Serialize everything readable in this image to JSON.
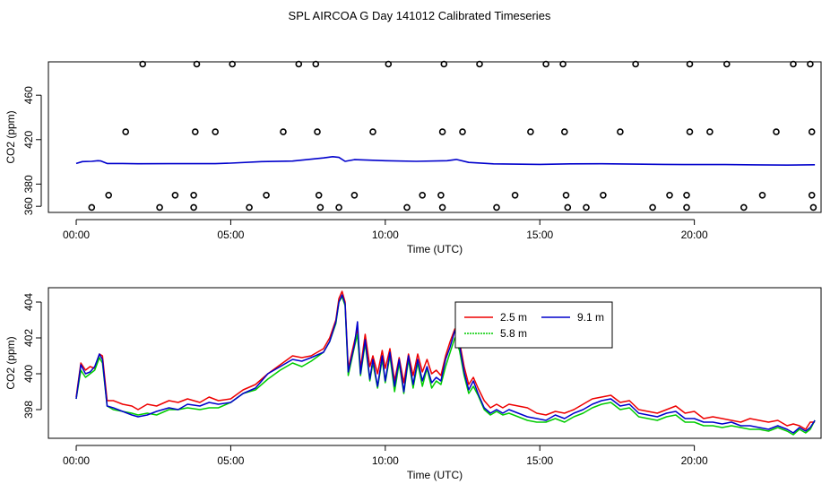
{
  "title": "SPL AIRCOA G  Day 141012  Calibrated Timeseries",
  "colors": {
    "s25": "#ee0000",
    "s58": "#00cc00",
    "s91": "#0000cc",
    "axis": "#000000"
  },
  "chart_data": [
    {
      "type": "scatter",
      "title": "SPL AIRCOA G  Day 141012  Calibrated Timeseries",
      "xlabel": "Time (UTC)",
      "ylabel": "CO2 (ppm)",
      "xlim": [
        -0.9,
        24.1
      ],
      "ylim": [
        354.5,
        490
      ],
      "xticks": [
        0,
        5,
        10,
        15,
        20
      ],
      "xtick_labels": [
        "00:00",
        "05:00",
        "10:00",
        "15:00",
        "20:00"
      ],
      "yticks": [
        360,
        380,
        420,
        460
      ],
      "ytick_labels": [
        "360",
        "380",
        "420",
        "460"
      ],
      "points": [
        {
          "x": 2.15,
          "y": 488
        },
        {
          "x": 3.9,
          "y": 488
        },
        {
          "x": 5.05,
          "y": 488
        },
        {
          "x": 7.2,
          "y": 488
        },
        {
          "x": 7.75,
          "y": 488
        },
        {
          "x": 10.1,
          "y": 488
        },
        {
          "x": 11.9,
          "y": 488
        },
        {
          "x": 13.05,
          "y": 488
        },
        {
          "x": 15.2,
          "y": 488
        },
        {
          "x": 15.75,
          "y": 488
        },
        {
          "x": 18.1,
          "y": 488
        },
        {
          "x": 19.85,
          "y": 488
        },
        {
          "x": 21.05,
          "y": 488
        },
        {
          "x": 23.2,
          "y": 488
        },
        {
          "x": 23.75,
          "y": 488
        },
        {
          "x": 1.6,
          "y": 427
        },
        {
          "x": 3.85,
          "y": 427
        },
        {
          "x": 4.5,
          "y": 427
        },
        {
          "x": 6.7,
          "y": 427
        },
        {
          "x": 7.8,
          "y": 427
        },
        {
          "x": 9.6,
          "y": 427
        },
        {
          "x": 11.85,
          "y": 427
        },
        {
          "x": 12.5,
          "y": 427
        },
        {
          "x": 14.7,
          "y": 427
        },
        {
          "x": 15.8,
          "y": 427
        },
        {
          "x": 17.6,
          "y": 427
        },
        {
          "x": 19.85,
          "y": 427
        },
        {
          "x": 20.5,
          "y": 427
        },
        {
          "x": 22.65,
          "y": 427
        },
        {
          "x": 23.8,
          "y": 427
        },
        {
          "x": 1.05,
          "y": 370
        },
        {
          "x": 3.2,
          "y": 370
        },
        {
          "x": 3.8,
          "y": 370
        },
        {
          "x": 6.15,
          "y": 370
        },
        {
          "x": 7.85,
          "y": 370
        },
        {
          "x": 9.0,
          "y": 370
        },
        {
          "x": 11.2,
          "y": 370
        },
        {
          "x": 11.8,
          "y": 370
        },
        {
          "x": 14.2,
          "y": 370
        },
        {
          "x": 15.85,
          "y": 370
        },
        {
          "x": 17.05,
          "y": 370
        },
        {
          "x": 19.2,
          "y": 370
        },
        {
          "x": 19.75,
          "y": 370
        },
        {
          "x": 22.2,
          "y": 370
        },
        {
          "x": 23.8,
          "y": 370
        },
        {
          "x": 0.5,
          "y": 359
        },
        {
          "x": 2.7,
          "y": 359
        },
        {
          "x": 3.8,
          "y": 359
        },
        {
          "x": 5.6,
          "y": 359
        },
        {
          "x": 7.9,
          "y": 359
        },
        {
          "x": 8.5,
          "y": 359
        },
        {
          "x": 10.7,
          "y": 359
        },
        {
          "x": 11.85,
          "y": 359
        },
        {
          "x": 13.6,
          "y": 359
        },
        {
          "x": 15.9,
          "y": 359
        },
        {
          "x": 16.5,
          "y": 359
        },
        {
          "x": 18.65,
          "y": 359
        },
        {
          "x": 19.75,
          "y": 359
        },
        {
          "x": 21.6,
          "y": 359
        },
        {
          "x": 23.85,
          "y": 359
        }
      ],
      "series": [
        {
          "name": "2.5 m",
          "x": [
            0,
            0.2,
            0.5,
            0.7,
            0.8,
            1.0,
            1.5,
            2.0,
            3.0,
            4.5,
            5.0,
            6.0,
            7.0,
            8.0,
            8.3,
            8.5,
            8.7,
            9.0,
            10.0,
            11.0,
            12.0,
            12.3,
            12.7,
            13.5,
            15.0,
            16.0,
            17.0,
            18.0,
            19.0,
            20.0,
            21.0,
            22.0,
            23.0,
            23.9
          ],
          "values": [
            398.5,
            400.2,
            400.5,
            401.0,
            400.8,
            398.5,
            398.5,
            398.3,
            398.4,
            398.4,
            398.9,
            400.2,
            400.7,
            403.5,
            404.7,
            404.0,
            400.5,
            402.0,
            401.0,
            400.5,
            401.0,
            402.2,
            399.5,
            398.2,
            397.7,
            398.2,
            398.3,
            398.0,
            397.7,
            397.6,
            397.6,
            397.3,
            397.1,
            397.4
          ]
        }
      ]
    },
    {
      "type": "line",
      "xlabel": "Time (UTC)",
      "ylabel": "CO2 (ppm)",
      "xlim": [
        -0.9,
        24.1
      ],
      "ylim": [
        396.4,
        404.8
      ],
      "xticks": [
        0,
        5,
        10,
        15,
        20
      ],
      "xtick_labels": [
        "00:00",
        "05:00",
        "10:00",
        "15:00",
        "20:00"
      ],
      "yticks": [
        398,
        400,
        402,
        404
      ],
      "ytick_labels": [
        "398",
        "400",
        "402",
        "404"
      ],
      "legend": "top-center",
      "series": [
        {
          "name": "2.5 m",
          "x": [
            0,
            0.15,
            0.3,
            0.45,
            0.6,
            0.75,
            0.85,
            1.0,
            1.2,
            1.5,
            1.8,
            2.0,
            2.3,
            2.6,
            3.0,
            3.3,
            3.6,
            4.0,
            4.3,
            4.6,
            5.0,
            5.4,
            5.8,
            6.2,
            6.6,
            7.0,
            7.3,
            7.6,
            8.0,
            8.2,
            8.4,
            8.5,
            8.6,
            8.7,
            8.8,
            9.0,
            9.1,
            9.2,
            9.35,
            9.5,
            9.6,
            9.75,
            9.9,
            10.0,
            10.15,
            10.3,
            10.45,
            10.6,
            10.75,
            10.9,
            11.05,
            11.2,
            11.35,
            11.5,
            11.65,
            11.8,
            11.95,
            12.1,
            12.25,
            12.4,
            12.55,
            12.7,
            12.85,
            13.0,
            13.2,
            13.4,
            13.6,
            13.8,
            14.0,
            14.3,
            14.6,
            14.9,
            15.2,
            15.5,
            15.8,
            16.1,
            16.4,
            16.7,
            17.0,
            17.3,
            17.6,
            17.9,
            18.2,
            18.5,
            18.8,
            19.1,
            19.4,
            19.7,
            20.0,
            20.3,
            20.6,
            20.9,
            21.2,
            21.5,
            21.8,
            22.1,
            22.4,
            22.7,
            23.0,
            23.2,
            23.4,
            23.6,
            23.75,
            23.9
          ],
          "values": [
            398.7,
            400.6,
            400.2,
            400.4,
            400.3,
            401.1,
            401.0,
            398.5,
            398.5,
            398.3,
            398.2,
            398.0,
            398.3,
            398.2,
            398.5,
            398.4,
            398.6,
            398.4,
            398.7,
            398.5,
            398.6,
            399.1,
            399.4,
            400.0,
            400.5,
            401.0,
            400.9,
            401.0,
            401.4,
            402.0,
            403.0,
            404.2,
            404.6,
            404.0,
            400.3,
            401.8,
            402.5,
            400.3,
            402.2,
            400.4,
            401.0,
            400.0,
            401.3,
            400.3,
            401.4,
            399.6,
            400.9,
            399.5,
            401.1,
            399.9,
            401.1,
            400.1,
            400.8,
            400.0,
            400.2,
            399.9,
            401.0,
            401.8,
            402.5,
            401.8,
            400.4,
            399.4,
            399.8,
            399.2,
            398.5,
            398.1,
            398.3,
            398.1,
            398.3,
            398.2,
            398.1,
            397.8,
            397.7,
            397.9,
            397.8,
            398.0,
            398.3,
            398.6,
            398.7,
            398.8,
            398.4,
            398.5,
            398.0,
            397.9,
            397.8,
            398.0,
            398.2,
            397.8,
            397.9,
            397.5,
            397.6,
            397.5,
            397.4,
            397.3,
            397.5,
            397.4,
            397.3,
            397.4,
            397.1,
            397.2,
            397.1,
            396.9,
            397.3,
            397.3
          ]
        },
        {
          "name": "5.8 m",
          "x": [
            0,
            0.15,
            0.3,
            0.45,
            0.6,
            0.75,
            0.85,
            1.0,
            1.2,
            1.5,
            1.8,
            2.0,
            2.3,
            2.6,
            3.0,
            3.3,
            3.6,
            4.0,
            4.3,
            4.6,
            5.0,
            5.4,
            5.8,
            6.2,
            6.6,
            7.0,
            7.3,
            7.6,
            8.0,
            8.2,
            8.4,
            8.5,
            8.6,
            8.7,
            8.8,
            9.0,
            9.1,
            9.2,
            9.35,
            9.5,
            9.6,
            9.75,
            9.9,
            10.0,
            10.15,
            10.3,
            10.45,
            10.6,
            10.75,
            10.9,
            11.05,
            11.2,
            11.35,
            11.5,
            11.65,
            11.8,
            11.95,
            12.1,
            12.25,
            12.4,
            12.55,
            12.7,
            12.85,
            13.0,
            13.2,
            13.4,
            13.6,
            13.8,
            14.0,
            14.3,
            14.6,
            14.9,
            15.2,
            15.5,
            15.8,
            16.1,
            16.4,
            16.7,
            17.0,
            17.3,
            17.6,
            17.9,
            18.2,
            18.5,
            18.8,
            19.1,
            19.4,
            19.7,
            20.0,
            20.3,
            20.6,
            20.9,
            21.2,
            21.5,
            21.8,
            22.1,
            22.4,
            22.7,
            23.0,
            23.2,
            23.4,
            23.6,
            23.75,
            23.9
          ],
          "values": [
            398.6,
            400.2,
            399.8,
            400.0,
            400.2,
            400.9,
            400.6,
            398.2,
            398.0,
            397.9,
            397.8,
            397.7,
            397.8,
            397.7,
            398.0,
            398.0,
            398.1,
            398.0,
            398.1,
            398.1,
            398.4,
            398.9,
            399.1,
            399.7,
            400.2,
            400.6,
            400.4,
            400.7,
            401.2,
            401.8,
            402.8,
            404.0,
            404.3,
            403.8,
            399.9,
            401.5,
            402.2,
            399.9,
            401.7,
            399.6,
            400.6,
            399.2,
            400.8,
            399.5,
            401.0,
            399.0,
            400.6,
            398.9,
            400.8,
            399.2,
            400.6,
            399.3,
            400.3,
            399.2,
            399.6,
            399.4,
            400.4,
            401.2,
            402.0,
            401.3,
            399.9,
            398.9,
            399.3,
            398.8,
            398.0,
            397.7,
            397.9,
            397.7,
            397.8,
            397.6,
            397.4,
            397.3,
            397.3,
            397.5,
            397.3,
            397.6,
            397.8,
            398.1,
            398.3,
            398.4,
            398.0,
            398.1,
            397.6,
            397.5,
            397.4,
            397.6,
            397.7,
            397.3,
            397.3,
            397.1,
            397.1,
            397.0,
            397.1,
            397.0,
            396.9,
            396.9,
            396.8,
            397.0,
            396.8,
            396.6,
            396.9,
            396.7,
            396.9,
            397.4
          ]
        },
        {
          "name": "9.1 m",
          "x": [
            0,
            0.15,
            0.3,
            0.45,
            0.6,
            0.75,
            0.85,
            1.0,
            1.2,
            1.5,
            1.8,
            2.0,
            2.3,
            2.6,
            3.0,
            3.3,
            3.6,
            4.0,
            4.3,
            4.6,
            5.0,
            5.4,
            5.8,
            6.2,
            6.6,
            7.0,
            7.3,
            7.6,
            8.0,
            8.2,
            8.4,
            8.5,
            8.6,
            8.7,
            8.8,
            9.0,
            9.1,
            9.2,
            9.35,
            9.5,
            9.6,
            9.75,
            9.9,
            10.0,
            10.15,
            10.3,
            10.45,
            10.6,
            10.75,
            10.9,
            11.05,
            11.2,
            11.35,
            11.5,
            11.65,
            11.8,
            11.95,
            12.1,
            12.25,
            12.4,
            12.55,
            12.7,
            12.85,
            13.0,
            13.2,
            13.4,
            13.6,
            13.8,
            14.0,
            14.3,
            14.6,
            14.9,
            15.2,
            15.5,
            15.8,
            16.1,
            16.4,
            16.7,
            17.0,
            17.3,
            17.6,
            17.9,
            18.2,
            18.5,
            18.8,
            19.1,
            19.4,
            19.7,
            20.0,
            20.3,
            20.6,
            20.9,
            21.2,
            21.5,
            21.8,
            22.1,
            22.4,
            22.7,
            23.0,
            23.2,
            23.4,
            23.6,
            23.75,
            23.9
          ],
          "values": [
            398.6,
            400.5,
            400.0,
            400.1,
            400.4,
            401.1,
            400.8,
            398.2,
            398.1,
            397.9,
            397.7,
            397.6,
            397.7,
            397.9,
            398.1,
            398.0,
            398.3,
            398.2,
            398.4,
            398.3,
            398.4,
            398.9,
            399.2,
            400.0,
            400.4,
            400.8,
            400.7,
            400.9,
            401.2,
            401.8,
            402.9,
            404.0,
            404.4,
            403.9,
            400.1,
            401.6,
            402.9,
            400.0,
            401.9,
            399.7,
            400.8,
            399.3,
            401.0,
            399.6,
            401.2,
            399.3,
            400.8,
            399.0,
            401.0,
            399.4,
            400.8,
            399.6,
            400.4,
            399.5,
            399.8,
            399.6,
            400.8,
            401.5,
            402.4,
            401.6,
            400.1,
            399.1,
            399.6,
            398.9,
            398.1,
            397.8,
            398.0,
            397.8,
            398.0,
            397.8,
            397.6,
            397.5,
            397.4,
            397.7,
            397.5,
            397.8,
            398.0,
            398.3,
            398.5,
            398.6,
            398.2,
            398.3,
            397.8,
            397.7,
            397.6,
            397.8,
            397.9,
            397.5,
            397.5,
            397.3,
            397.3,
            397.2,
            397.3,
            397.1,
            397.1,
            397.0,
            396.9,
            397.1,
            396.9,
            396.7,
            397.0,
            396.8,
            397.0,
            397.4
          ]
        }
      ]
    }
  ]
}
